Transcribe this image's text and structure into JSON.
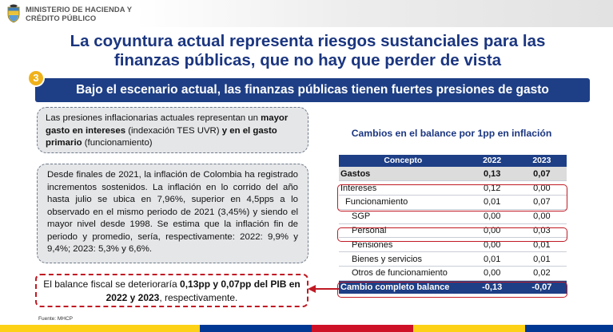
{
  "header": {
    "ministry_line1": "MINISTERIO DE HACIENDA Y",
    "ministry_line2": "CRÉDITO PÚBLICO",
    "crest_icon": "colombia-coat-of-arms-icon"
  },
  "title": {
    "line1": "La coyuntura actual representa riesgos sustanciales para las",
    "line2": "finanzas públicas, que no hay que perder de vista"
  },
  "section": {
    "number": "3",
    "text": "Bajo el escenario actual, las finanzas públicas tienen fuertes presiones de gasto"
  },
  "note1": {
    "t1": "Las presiones inflacionarias actuales representan un ",
    "b1": "mayor gasto en intereses",
    "t2": " (indexación TES UVR) ",
    "b2": "y en el gasto primario",
    "t3": " (funcionamiento)"
  },
  "note2": {
    "text": "Desde finales de 2021, la inflación de Colombia ha registrado incrementos sostenidos. La inflación en lo corrido del año hasta julio se ubica en 7,96%, superior en 4,5pps a lo observado en el mismo periodo de 2021 (3,45%) y siendo el mayor nivel desde 1998. Se estima que la inflación fin de periodo y promedio, sería, respectivamente: 2022: 9,9% y 9,4%; 2023: 5,3% y 6,6%."
  },
  "callout": {
    "t1": "El balance fiscal se deterioraría ",
    "b1": "0,13pp y 0,07pp del PIB en 2022 y 2023",
    "t2": ", respectivamente."
  },
  "source": "Fuente: MHCP",
  "table": {
    "title": "Cambios en el balance por 1pp en inflación",
    "headers": [
      "Concepto",
      "2022",
      "2023"
    ],
    "rows": [
      {
        "label": "Gastos",
        "y2022": "0,13",
        "y2023": "0,07"
      },
      {
        "label": "Intereses",
        "y2022": "0,12",
        "y2023": "0,00"
      },
      {
        "label": "Funcionamiento",
        "y2022": "0,01",
        "y2023": "0,07"
      },
      {
        "label": "SGP",
        "y2022": "0,00",
        "y2023": "0,00"
      },
      {
        "label": "Personal",
        "y2022": "0,00",
        "y2023": "0,03"
      },
      {
        "label": "Pensiones",
        "y2022": "0,00",
        "y2023": "0,01"
      },
      {
        "label": "Bienes y servicios",
        "y2022": "0,01",
        "y2023": "0,01"
      },
      {
        "label": "Otros de funcionamiento",
        "y2022": "0,00",
        "y2023": "0,02"
      },
      {
        "label": "Cambio completo balance",
        "y2022": "-0,13",
        "y2023": "-0,07"
      }
    ]
  },
  "colors": {
    "brand_blue": "#1e3f86",
    "title_blue": "#1b3680",
    "accent_yellow": "#f0b21b",
    "highlight_red": "#c01a24",
    "flag_yellow": "#fcd116",
    "flag_blue": "#003893",
    "flag_red": "#ce1126"
  }
}
